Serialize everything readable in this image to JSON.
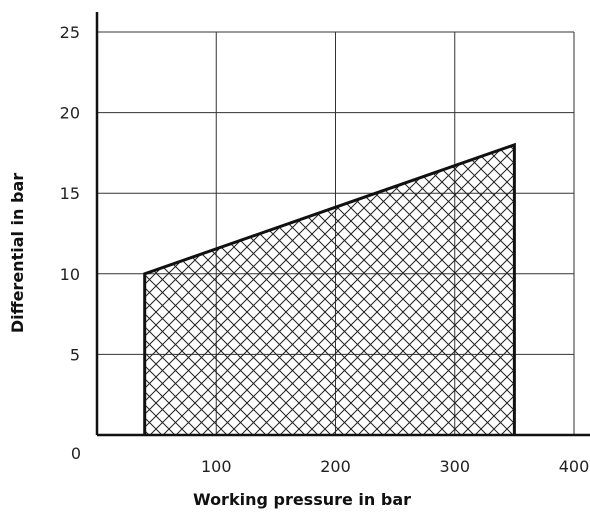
{
  "chart_data": {
    "type": "area",
    "title": "",
    "xlabel": "Working pressure in bar",
    "ylabel": "Differential in bar",
    "xlim": [
      0,
      400
    ],
    "ylim": [
      0,
      25
    ],
    "x_ticks": [
      100,
      200,
      300,
      400
    ],
    "y_ticks": [
      5,
      10,
      15,
      20,
      25
    ],
    "origin_label": "0",
    "grid": true,
    "fill": "cross-hatch",
    "x": [
      40,
      350
    ],
    "series": [
      {
        "values": [
          10,
          18
        ]
      }
    ]
  }
}
